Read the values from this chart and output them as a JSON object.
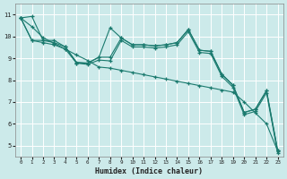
{
  "xlabel": "Humidex (Indice chaleur)",
  "bg_color": "#cceaea",
  "grid_color": "#ffffff",
  "line_color": "#1a7a6e",
  "xlim": [
    -0.5,
    23.5
  ],
  "ylim": [
    4.5,
    11.5
  ],
  "yticks": [
    5,
    6,
    7,
    8,
    9,
    10,
    11
  ],
  "xticks": [
    0,
    1,
    2,
    3,
    4,
    5,
    6,
    7,
    8,
    9,
    10,
    11,
    12,
    13,
    14,
    15,
    16,
    17,
    18,
    19,
    20,
    21,
    22,
    23
  ],
  "series": [
    [
      10.85,
      10.92,
      9.82,
      9.82,
      9.52,
      8.78,
      8.78,
      9.05,
      10.4,
      9.93,
      9.62,
      9.62,
      9.57,
      9.62,
      9.72,
      10.32,
      9.37,
      9.32,
      8.27,
      7.77,
      6.52,
      6.67,
      7.52,
      4.77
    ],
    [
      10.85,
      9.82,
      9.82,
      9.72,
      9.52,
      8.82,
      8.78,
      9.05,
      9.05,
      9.93,
      9.62,
      9.62,
      9.57,
      9.62,
      9.72,
      10.32,
      9.37,
      9.32,
      8.27,
      7.77,
      6.52,
      6.67,
      7.52,
      4.77
    ],
    [
      10.85,
      9.82,
      9.72,
      9.62,
      9.42,
      8.78,
      8.72,
      8.92,
      8.88,
      9.82,
      9.52,
      9.52,
      9.47,
      9.52,
      9.62,
      10.22,
      9.27,
      9.22,
      8.17,
      7.67,
      6.42,
      6.57,
      7.42,
      4.67
    ],
    [
      10.85,
      10.45,
      9.95,
      9.68,
      9.42,
      9.15,
      8.9,
      8.6,
      8.55,
      8.45,
      8.35,
      8.25,
      8.15,
      8.05,
      7.95,
      7.85,
      7.75,
      7.65,
      7.55,
      7.45,
      7.0,
      6.5,
      6.0,
      4.75
    ]
  ]
}
